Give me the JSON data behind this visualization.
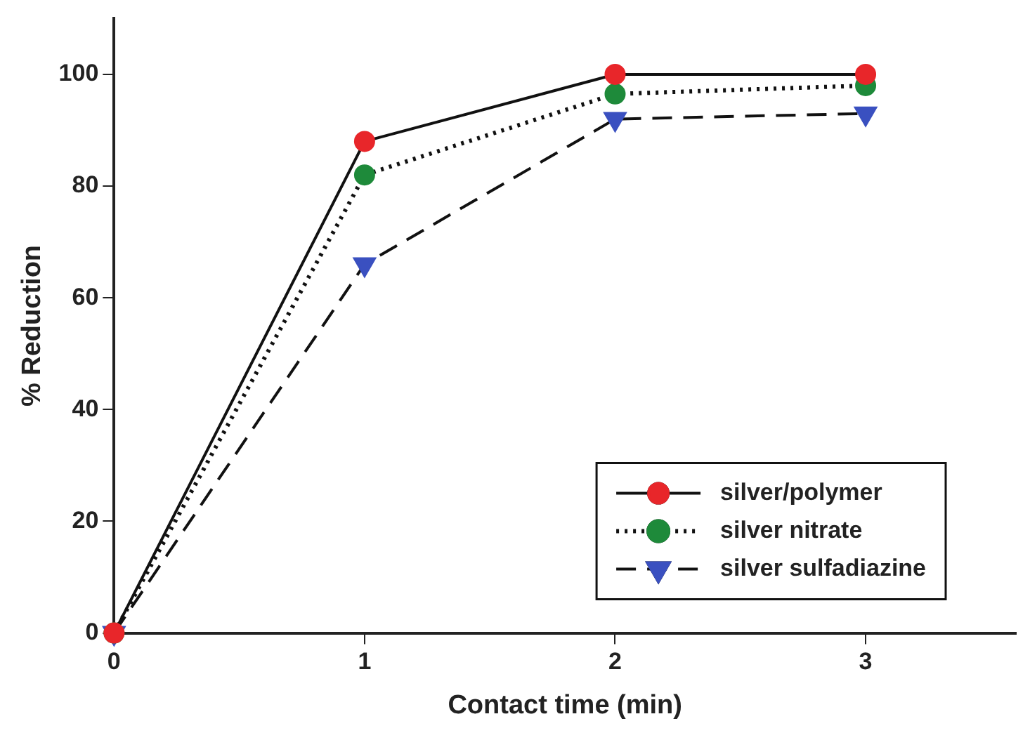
{
  "chart_data": {
    "type": "line",
    "xlabel": "Contact time (min)",
    "ylabel": "% Reduction",
    "x": [
      0,
      1,
      2,
      3
    ],
    "xlim": [
      0,
      3.6
    ],
    "xticks": [
      0,
      1,
      2,
      3
    ],
    "ylim": [
      0,
      110
    ],
    "yticks": [
      0,
      20,
      40,
      60,
      80,
      100
    ],
    "grid": false,
    "legend": "bottom right",
    "series": [
      {
        "name": "silver/polymer",
        "color": "#e8262a",
        "values": [
          0,
          88,
          100,
          100
        ],
        "marker": "circle",
        "line_style": "solid"
      },
      {
        "name": "silver nitrate",
        "color": "#1e8a3a",
        "values": [
          0,
          82,
          96.5,
          98
        ],
        "marker": "circle",
        "line_style": "dotted"
      },
      {
        "name": "silver sulfadiazine",
        "color": "#3a50c0",
        "values": [
          0,
          66,
          92,
          93
        ],
        "marker": "triangle",
        "line_style": "dashed"
      }
    ]
  }
}
